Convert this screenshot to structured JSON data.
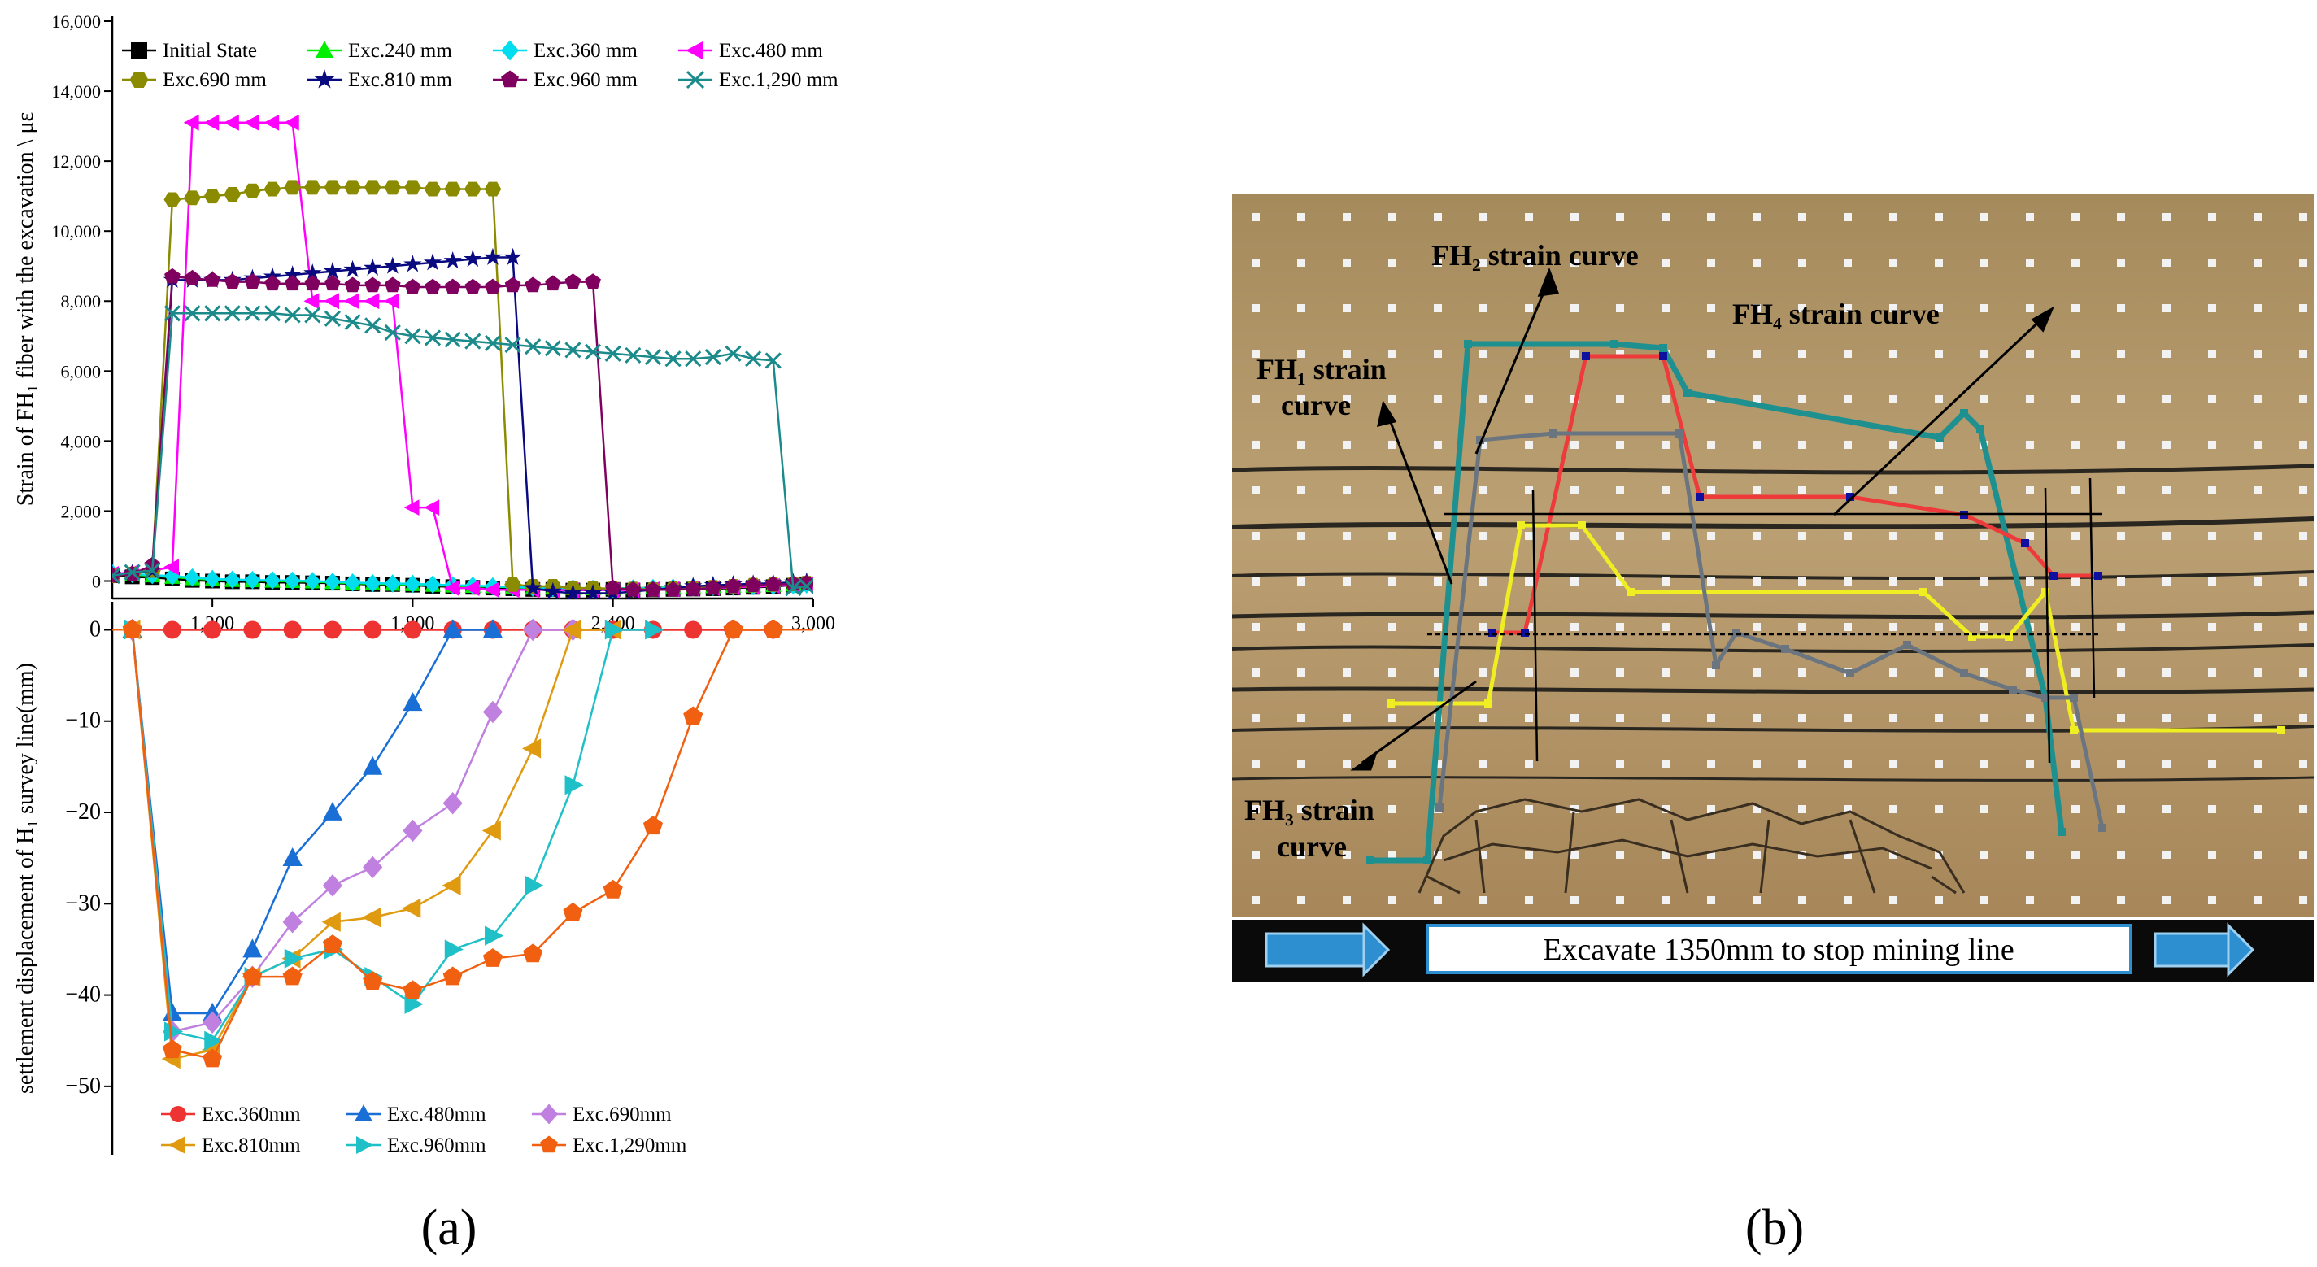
{
  "panel_labels": {
    "a": "(a)",
    "b": "(b)"
  },
  "chart_data": [
    {
      "type": "line",
      "ylabel": "Strain of  FH₁  fiber with the excavation \\ με",
      "xlim": [
        900,
        3000
      ],
      "ylim": [
        -500,
        16000
      ],
      "x_ticks": [
        "1,200",
        "1,800",
        "2,400",
        "3,000"
      ],
      "y_ticks": [
        "0",
        "2,000",
        "4,000",
        "6,000",
        "8,000",
        "10,000",
        "12,000",
        "14,000",
        "16,000"
      ],
      "legend_position": "top",
      "series": [
        {
          "name": "Initial State",
          "color": "#000000",
          "marker": "square",
          "x": [
            900,
            960,
            1020,
            1080,
            1140,
            1200,
            1260,
            1320,
            1380,
            1440,
            1500,
            1560,
            1620,
            1680,
            1740,
            1800,
            1860,
            1920,
            1980,
            2040,
            2100,
            2160,
            2220,
            2280,
            2340,
            2400,
            2460,
            2520,
            2580,
            2640,
            2700,
            2760,
            2820,
            2880,
            2940,
            2980
          ],
          "y": [
            150,
            120,
            100,
            60,
            20,
            0,
            -20,
            -20,
            -40,
            -40,
            -50,
            -60,
            -80,
            -100,
            -100,
            -120,
            -150,
            -160,
            -180,
            -200,
            -220,
            -240,
            -240,
            -260,
            -260,
            -240,
            -260,
            -250,
            -240,
            -230,
            -220,
            -200,
            -180,
            -160,
            -120,
            -80
          ]
        },
        {
          "name": "Exc.240 mm",
          "color": "#00ee00",
          "marker": "triangle-up",
          "x": [
            900,
            960,
            1020,
            1080,
            1140,
            1200,
            1260,
            1320,
            1380,
            1440,
            1500,
            1560,
            1620,
            1680,
            1740,
            1800,
            1860,
            1920,
            1980,
            2040,
            2100,
            2160,
            2220,
            2280,
            2340,
            2400,
            2460,
            2520,
            2580,
            2640,
            2700,
            2760,
            2820,
            2880,
            2940,
            2980
          ],
          "y": [
            200,
            180,
            150,
            110,
            70,
            40,
            20,
            10,
            0,
            -10,
            -20,
            -40,
            -60,
            -80,
            -90,
            -100,
            -120,
            -140,
            -150,
            -160,
            -180,
            -200,
            -200,
            -210,
            -220,
            -210,
            -200,
            -190,
            -180,
            -170,
            -160,
            -150,
            -140,
            -130,
            -110,
            -90
          ]
        },
        {
          "name": "Exc.360 mm",
          "color": "#00ddee",
          "marker": "diamond",
          "x": [
            900,
            960,
            1020,
            1080,
            1140,
            1200,
            1260,
            1320,
            1380,
            1440,
            1500,
            1560,
            1620,
            1680,
            1740,
            1800,
            1860,
            1920,
            1980,
            2040,
            2100,
            2160,
            2220,
            2280,
            2340,
            2400,
            2460,
            2520,
            2580,
            2640,
            2700,
            2760,
            2820,
            2880,
            2940,
            2980
          ],
          "y": [
            220,
            200,
            170,
            140,
            100,
            60,
            40,
            30,
            20,
            10,
            0,
            -20,
            -40,
            -60,
            -70,
            -80,
            -100,
            -120,
            -130,
            -150,
            -170,
            -190,
            -200,
            -210,
            -220,
            -220,
            -210,
            -200,
            -190,
            -180,
            -170,
            -160,
            -150,
            -140,
            -120,
            -100
          ]
        },
        {
          "name": "Exc.480 mm",
          "color": "#ff00ff",
          "marker": "triangle-left",
          "x": [
            900,
            960,
            1020,
            1080,
            1140,
            1200,
            1260,
            1320,
            1380,
            1440,
            1500,
            1560,
            1620,
            1680,
            1740,
            1800,
            1860,
            1920,
            1980,
            2040,
            2100,
            2160,
            2220,
            2280,
            2340,
            2400,
            2460,
            2520,
            2580,
            2640,
            2700,
            2760,
            2820,
            2880,
            2940,
            2980
          ],
          "y": [
            200,
            250,
            300,
            400,
            13100,
            13100,
            13100,
            13100,
            13100,
            13100,
            8000,
            8000,
            8000,
            8000,
            8000,
            2100,
            2100,
            -200,
            -200,
            -250,
            -250,
            -250,
            -260,
            -260,
            -260,
            -260,
            -260,
            -240,
            -230,
            -220,
            -200,
            -180,
            -160,
            -140,
            -120,
            -100
          ]
        },
        {
          "name": "Exc.690 mm",
          "color": "#8b8b00",
          "marker": "hexagon",
          "x": [
            900,
            960,
            1020,
            1080,
            1140,
            1200,
            1260,
            1320,
            1380,
            1440,
            1500,
            1560,
            1620,
            1680,
            1740,
            1800,
            1860,
            1920,
            1980,
            2040,
            2100,
            2160,
            2220,
            2280,
            2340,
            2400,
            2460,
            2520,
            2580,
            2640,
            2700,
            2760,
            2820,
            2880,
            2940,
            2980
          ],
          "y": [
            150,
            200,
            300,
            10900,
            10950,
            11000,
            11050,
            11150,
            11200,
            11250,
            11250,
            11250,
            11250,
            11250,
            11250,
            11250,
            11200,
            11200,
            11200,
            11200,
            -100,
            -150,
            -150,
            -200,
            -200,
            -220,
            -230,
            -240,
            -220,
            -200,
            -180,
            -150,
            -120,
            -100,
            -80,
            -60
          ]
        },
        {
          "name": "Exc.810 mm",
          "color": "#0a0a80",
          "marker": "star",
          "x": [
            900,
            960,
            1020,
            1080,
            1140,
            1200,
            1260,
            1320,
            1380,
            1440,
            1500,
            1560,
            1620,
            1680,
            1740,
            1800,
            1860,
            1920,
            1980,
            2040,
            2100,
            2160,
            2220,
            2280,
            2340,
            2400,
            2460,
            2520,
            2580,
            2640,
            2700,
            2760,
            2820,
            2880,
            2940,
            2980
          ],
          "y": [
            180,
            220,
            300,
            8600,
            8600,
            8600,
            8600,
            8650,
            8700,
            8750,
            8800,
            8850,
            8900,
            8950,
            9000,
            9050,
            9100,
            9150,
            9200,
            9250,
            9250,
            -200,
            -300,
            -350,
            -350,
            -350,
            -300,
            -250,
            -200,
            -150,
            -120,
            -100,
            -80,
            -60,
            -40,
            -20
          ]
        },
        {
          "name": "Exc.960 mm",
          "color": "#800060",
          "marker": "pentagon",
          "x": [
            900,
            960,
            1020,
            1080,
            1140,
            1200,
            1260,
            1320,
            1380,
            1440,
            1500,
            1560,
            1620,
            1680,
            1740,
            1800,
            1860,
            1920,
            1980,
            2040,
            2100,
            2160,
            2220,
            2280,
            2340,
            2400,
            2460,
            2520,
            2580,
            2640,
            2700,
            2760,
            2820,
            2880,
            2940,
            2980
          ],
          "y": [
            150,
            200,
            450,
            8700,
            8650,
            8600,
            8550,
            8550,
            8500,
            8500,
            8500,
            8500,
            8450,
            8450,
            8450,
            8400,
            8400,
            8400,
            8400,
            8400,
            8450,
            8450,
            8500,
            8550,
            8550,
            -200,
            -250,
            -250,
            -250,
            -230,
            -200,
            -150,
            -120,
            -100,
            -80,
            -60
          ]
        },
        {
          "name": "Exc.1,290 mm",
          "color": "#1a8a8a",
          "marker": "x",
          "x": [
            900,
            960,
            1020,
            1080,
            1140,
            1200,
            1260,
            1320,
            1380,
            1440,
            1500,
            1560,
            1620,
            1680,
            1740,
            1800,
            1860,
            1920,
            1980,
            2040,
            2100,
            2160,
            2220,
            2280,
            2340,
            2400,
            2460,
            2520,
            2580,
            2640,
            2700,
            2760,
            2820,
            2880,
            2940,
            2980
          ],
          "y": [
            150,
            250,
            300,
            7650,
            7650,
            7650,
            7650,
            7650,
            7650,
            7600,
            7600,
            7500,
            7400,
            7300,
            7100,
            7000,
            6950,
            6900,
            6850,
            6800,
            6750,
            6700,
            6650,
            6600,
            6550,
            6500,
            6450,
            6400,
            6350,
            6350,
            6400,
            6500,
            6350,
            6300,
            -200,
            -150
          ]
        }
      ]
    },
    {
      "type": "line",
      "ylabel": "settlement displacement of H₁ survey line(mm)",
      "xlim": [
        900,
        3000
      ],
      "ylim": [
        -55,
        2
      ],
      "y_ticks": [
        "0",
        "−10",
        "−20",
        "−30",
        "−40",
        "−50"
      ],
      "legend_position": "bottom-left",
      "series": [
        {
          "name": "Exc.360mm",
          "color": "#ee3333",
          "marker": "circle",
          "x": [
            960,
            1080,
            1200,
            1320,
            1440,
            1560,
            1680,
            1800,
            1920,
            2040,
            2160,
            2280,
            2400,
            2520,
            2640,
            2760,
            2880
          ],
          "y": [
            0,
            0,
            0,
            0,
            0,
            0,
            0,
            0,
            0,
            0,
            0,
            0,
            0,
            0,
            0,
            0,
            0
          ]
        },
        {
          "name": "Exc.480mm",
          "color": "#1a6fd6",
          "marker": "triangle-up",
          "x": [
            960,
            1080,
            1200,
            1320,
            1440,
            1560,
            1680,
            1800,
            1920,
            2040
          ],
          "y": [
            0,
            -42,
            -42,
            -35,
            -25,
            -20,
            -15,
            -8,
            0,
            0
          ]
        },
        {
          "name": "Exc.690mm",
          "color": "#c080e0",
          "marker": "diamond",
          "x": [
            960,
            1080,
            1200,
            1320,
            1440,
            1560,
            1680,
            1800,
            1920,
            2040,
            2160,
            2280
          ],
          "y": [
            0,
            -44,
            -43,
            -38,
            -32,
            -28,
            -26,
            -22,
            -19,
            -9,
            0,
            0
          ]
        },
        {
          "name": "Exc.810mm",
          "color": "#e09a10",
          "marker": "triangle-left",
          "x": [
            960,
            1080,
            1200,
            1320,
            1440,
            1560,
            1680,
            1800,
            1920,
            2040,
            2160,
            2280,
            2400
          ],
          "y": [
            0,
            -47,
            -46,
            -38,
            -36,
            -32,
            -31.5,
            -30.5,
            -28,
            -22,
            -13,
            0,
            0
          ]
        },
        {
          "name": "Exc.960mm",
          "color": "#20c0c8",
          "marker": "triangle-right",
          "x": [
            960,
            1080,
            1200,
            1320,
            1440,
            1560,
            1680,
            1800,
            1920,
            2040,
            2160,
            2280,
            2400,
            2520
          ],
          "y": [
            0,
            -44,
            -45,
            -38,
            -36,
            -35,
            -38,
            -41,
            -35,
            -33.5,
            -28,
            -17,
            0,
            0
          ]
        },
        {
          "name": "Exc.1,290mm",
          "color": "#f06010",
          "marker": "pentagon",
          "x": [
            960,
            1080,
            1200,
            1320,
            1440,
            1560,
            1680,
            1800,
            1920,
            2040,
            2160,
            2280,
            2400,
            2520,
            2640,
            2760,
            2880
          ],
          "y": [
            0,
            -46,
            -47,
            -38,
            -38,
            -34.5,
            -38.5,
            -39.5,
            -38,
            -36,
            -35.5,
            -31,
            -28.5,
            -21.5,
            -9.5,
            0,
            0
          ]
        }
      ]
    }
  ],
  "photo": {
    "annotations": {
      "fh2": "FH₂ strain curve",
      "fh4": "FH₄ strain curve",
      "fh1_l1": "FH₁ strain",
      "fh1_l2": "curve",
      "fh3_l1": "FH₃ strain",
      "fh3_l2": "curve"
    },
    "banner": "Excavate 1350mm to stop mining line",
    "colors": {
      "background": "#b59868",
      "banner_bg": "#0a0a0a",
      "arrow": "#2e8fd0",
      "fh1": "#1e9090",
      "fh2": "#ee3a3a",
      "fh3": "#eeee22",
      "fh4": "#6a7580"
    }
  }
}
